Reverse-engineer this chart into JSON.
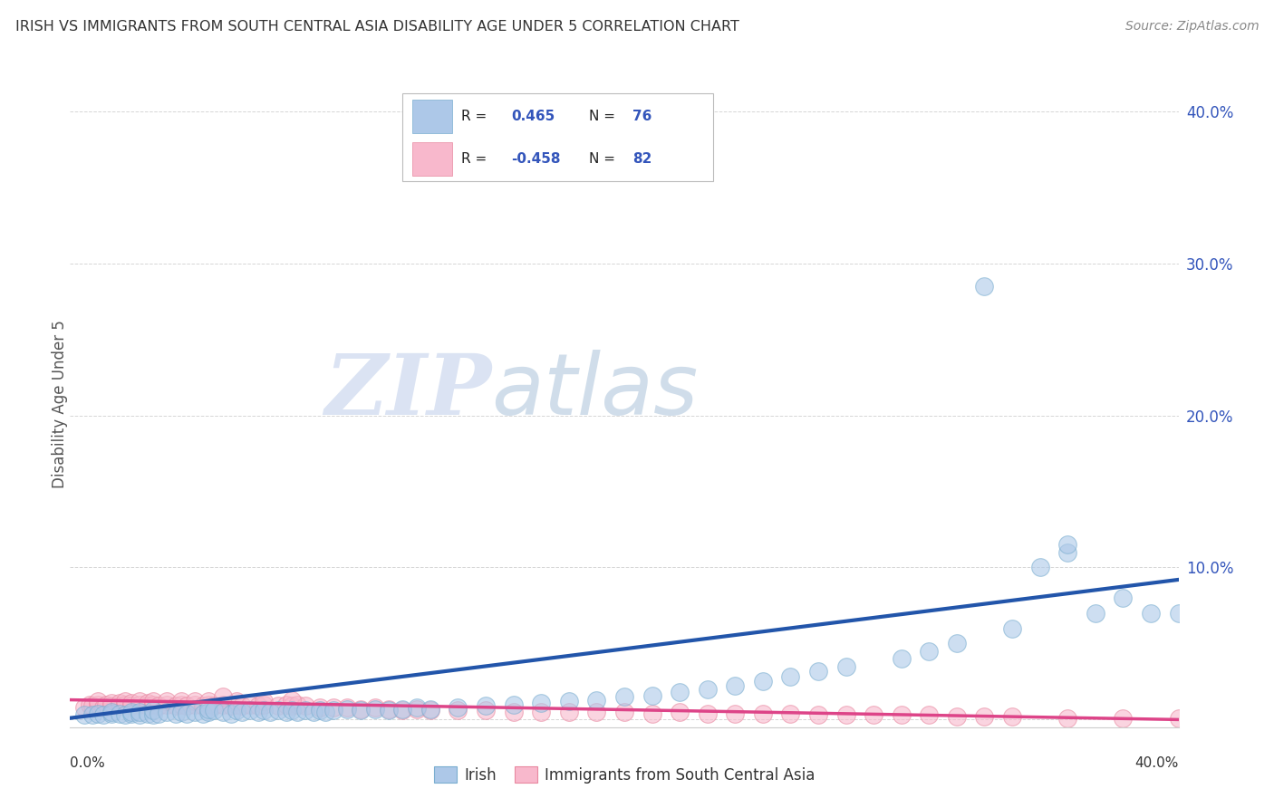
{
  "title": "IRISH VS IMMIGRANTS FROM SOUTH CENTRAL ASIA DISABILITY AGE UNDER 5 CORRELATION CHART",
  "source": "Source: ZipAtlas.com",
  "ylabel": "Disability Age Under 5",
  "xlim": [
    0.0,
    0.4
  ],
  "ylim": [
    -0.005,
    0.42
  ],
  "ytick_vals": [
    0.0,
    0.1,
    0.2,
    0.3,
    0.4
  ],
  "ytick_labels": [
    "",
    "10.0%",
    "20.0%",
    "30.0%",
    "40.0%"
  ],
  "blue_color": "#a8c8e8",
  "pink_color": "#f5a8b8",
  "blue_edge_color": "#7aaed0",
  "pink_edge_color": "#e888a0",
  "blue_line_color": "#2255aa",
  "pink_line_color": "#dd4488",
  "blue_fill_color": "#adc8e8",
  "pink_fill_color": "#f8b8cc",
  "legend_box_color": "#adc8e8",
  "legend_box_color2": "#f8b8cc",
  "grid_color": "#cccccc",
  "background_color": "#ffffff",
  "watermark_zip_color": "#c8d8f0",
  "watermark_atlas_color": "#b8c8e8",
  "blue_line": [
    0.0,
    0.001,
    0.4,
    0.092
  ],
  "pink_line": [
    0.0,
    0.013,
    0.4,
    0.0
  ],
  "blue_scatter_x": [
    0.005,
    0.008,
    0.01,
    0.012,
    0.015,
    0.015,
    0.018,
    0.02,
    0.022,
    0.022,
    0.025,
    0.025,
    0.028,
    0.03,
    0.03,
    0.032,
    0.035,
    0.038,
    0.04,
    0.042,
    0.045,
    0.048,
    0.05,
    0.05,
    0.052,
    0.055,
    0.058,
    0.06,
    0.062,
    0.065,
    0.068,
    0.07,
    0.072,
    0.075,
    0.078,
    0.08,
    0.082,
    0.085,
    0.088,
    0.09,
    0.092,
    0.095,
    0.1,
    0.105,
    0.11,
    0.115,
    0.12,
    0.125,
    0.13,
    0.14,
    0.15,
    0.16,
    0.17,
    0.18,
    0.19,
    0.2,
    0.21,
    0.22,
    0.23,
    0.24,
    0.25,
    0.26,
    0.27,
    0.28,
    0.3,
    0.31,
    0.32,
    0.34,
    0.35,
    0.36,
    0.36,
    0.37,
    0.38,
    0.39,
    0.4,
    0.33
  ],
  "blue_scatter_y": [
    0.003,
    0.003,
    0.004,
    0.003,
    0.004,
    0.005,
    0.004,
    0.003,
    0.004,
    0.005,
    0.003,
    0.005,
    0.004,
    0.003,
    0.006,
    0.004,
    0.005,
    0.004,
    0.005,
    0.004,
    0.005,
    0.004,
    0.005,
    0.007,
    0.006,
    0.005,
    0.004,
    0.006,
    0.005,
    0.006,
    0.005,
    0.006,
    0.005,
    0.006,
    0.005,
    0.006,
    0.005,
    0.006,
    0.005,
    0.006,
    0.005,
    0.006,
    0.007,
    0.006,
    0.007,
    0.006,
    0.007,
    0.008,
    0.007,
    0.008,
    0.009,
    0.01,
    0.011,
    0.012,
    0.013,
    0.015,
    0.016,
    0.018,
    0.02,
    0.022,
    0.025,
    0.028,
    0.032,
    0.035,
    0.04,
    0.045,
    0.05,
    0.06,
    0.1,
    0.11,
    0.115,
    0.07,
    0.08,
    0.07,
    0.07,
    0.285
  ],
  "pink_scatter_x": [
    0.005,
    0.007,
    0.008,
    0.01,
    0.01,
    0.012,
    0.013,
    0.015,
    0.015,
    0.018,
    0.018,
    0.02,
    0.02,
    0.022,
    0.022,
    0.025,
    0.025,
    0.028,
    0.028,
    0.03,
    0.03,
    0.032,
    0.035,
    0.035,
    0.038,
    0.04,
    0.04,
    0.042,
    0.045,
    0.045,
    0.048,
    0.05,
    0.05,
    0.052,
    0.055,
    0.058,
    0.06,
    0.06,
    0.062,
    0.065,
    0.068,
    0.07,
    0.07,
    0.075,
    0.078,
    0.08,
    0.082,
    0.085,
    0.09,
    0.095,
    0.1,
    0.105,
    0.11,
    0.115,
    0.12,
    0.125,
    0.13,
    0.14,
    0.15,
    0.16,
    0.17,
    0.18,
    0.19,
    0.2,
    0.21,
    0.22,
    0.23,
    0.24,
    0.25,
    0.26,
    0.27,
    0.28,
    0.29,
    0.3,
    0.31,
    0.32,
    0.33,
    0.34,
    0.36,
    0.38,
    0.4,
    0.055,
    0.08
  ],
  "pink_scatter_y": [
    0.008,
    0.01,
    0.009,
    0.01,
    0.012,
    0.008,
    0.01,
    0.009,
    0.011,
    0.009,
    0.011,
    0.01,
    0.012,
    0.009,
    0.011,
    0.01,
    0.012,
    0.009,
    0.011,
    0.01,
    0.012,
    0.009,
    0.01,
    0.012,
    0.009,
    0.01,
    0.012,
    0.009,
    0.01,
    0.012,
    0.009,
    0.01,
    0.012,
    0.009,
    0.01,
    0.009,
    0.01,
    0.012,
    0.009,
    0.01,
    0.009,
    0.01,
    0.012,
    0.009,
    0.01,
    0.009,
    0.01,
    0.009,
    0.008,
    0.008,
    0.008,
    0.007,
    0.008,
    0.007,
    0.006,
    0.007,
    0.006,
    0.006,
    0.006,
    0.005,
    0.005,
    0.005,
    0.005,
    0.005,
    0.004,
    0.005,
    0.004,
    0.004,
    0.004,
    0.004,
    0.003,
    0.003,
    0.003,
    0.003,
    0.003,
    0.002,
    0.002,
    0.002,
    0.001,
    0.001,
    0.001,
    0.015,
    0.013
  ]
}
